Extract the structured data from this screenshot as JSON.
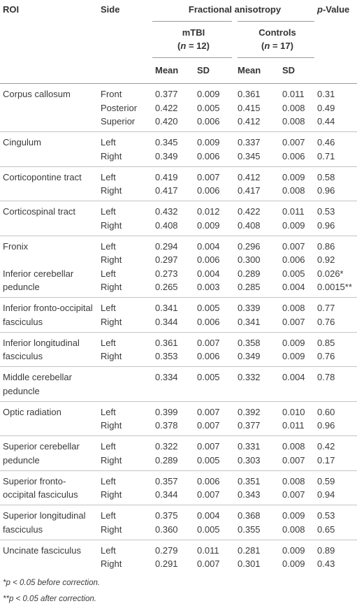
{
  "table": {
    "header": {
      "roi": "ROI",
      "side": "Side",
      "fa": "Fractional anisotropy",
      "p_italic": "p",
      "p_rest": "-Value",
      "mtbi": "mTBI",
      "mtbi_open": "(",
      "mtbi_n": "n",
      "mtbi_rest": " = 12)",
      "controls": "Controls",
      "controls_open": "(",
      "controls_n": "n",
      "controls_rest": " = 17)",
      "mean_1": "Mean",
      "sd_1": "SD",
      "mean_2": "Mean",
      "sd_2": "SD"
    },
    "blocks": [
      [
        {
          "roi": "Corpus callosum",
          "rows": [
            [
              "Front",
              "0.377",
              "0.009",
              "0.361",
              "0.011",
              "0.31"
            ],
            [
              "Posterior",
              "0.422",
              "0.005",
              "0.415",
              "0.008",
              "0.49"
            ],
            [
              "Superior",
              "0.420",
              "0.006",
              "0.412",
              "0.008",
              "0.44"
            ]
          ]
        }
      ],
      [
        {
          "roi": "Cingulum",
          "rows": [
            [
              "Left",
              "0.345",
              "0.009",
              "0.337",
              "0.007",
              "0.46"
            ],
            [
              "Right",
              "0.349",
              "0.006",
              "0.345",
              "0.006",
              "0.71"
            ]
          ]
        }
      ],
      [
        {
          "roi": "Corticopontine tract",
          "rows": [
            [
              "Left",
              "0.419",
              "0.007",
              "0.412",
              "0.009",
              "0.58"
            ],
            [
              "Right",
              "0.417",
              "0.006",
              "0.417",
              "0.008",
              "0.96"
            ]
          ]
        }
      ],
      [
        {
          "roi": "Corticospinal tract",
          "rows": [
            [
              "Left",
              "0.432",
              "0.012",
              "0.422",
              "0.011",
              "0.53"
            ],
            [
              "Right",
              "0.408",
              "0.009",
              "0.408",
              "0.009",
              "0.96"
            ]
          ]
        }
      ],
      [
        {
          "roi": "Fronix",
          "rows": [
            [
              "Left",
              "0.294",
              "0.004",
              "0.296",
              "0.007",
              "0.86"
            ],
            [
              "Right",
              "0.297",
              "0.006",
              "0.300",
              "0.006",
              "0.92"
            ]
          ]
        },
        {
          "roi": "Inferior cerebellar peduncle",
          "rows": [
            [
              "Left",
              "0.273",
              "0.004",
              "0.289",
              "0.005",
              "0.026*"
            ],
            [
              "Right",
              "0.265",
              "0.003",
              "0.285",
              "0.004",
              "0.0015**"
            ]
          ]
        }
      ],
      [
        {
          "roi": "Inferior fronto-occipital fasciculus",
          "rows": [
            [
              "Left",
              "0.341",
              "0.005",
              "0.339",
              "0.008",
              "0.77"
            ],
            [
              "Right",
              "0.344",
              "0.006",
              "0.341",
              "0.007",
              "0.76"
            ]
          ]
        }
      ],
      [
        {
          "roi": "Inferior longitudinal fasciculus",
          "rows": [
            [
              "Left",
              "0.361",
              "0.007",
              "0.358",
              "0.009",
              "0.85"
            ],
            [
              "Right",
              "0.353",
              "0.006",
              "0.349",
              "0.009",
              "0.76"
            ]
          ]
        }
      ],
      [
        {
          "roi": "Middle cerebellar peduncle",
          "rows": [
            [
              null,
              "0.334",
              "0.005",
              "0.332",
              "0.004",
              "0.78"
            ]
          ]
        }
      ],
      [
        {
          "roi": "Optic radiation",
          "rows": [
            [
              "Left",
              "0.399",
              "0.007",
              "0.392",
              "0.010",
              "0.60"
            ],
            [
              "Right",
              "0.378",
              "0.007",
              "0.377",
              "0.011",
              "0.96"
            ]
          ]
        }
      ],
      [
        {
          "roi": "Superior cerebellar peduncle",
          "rows": [
            [
              "Left",
              "0.322",
              "0.007",
              "0.331",
              "0.008",
              "0.42"
            ],
            [
              "Right",
              "0.289",
              "0.005",
              "0.303",
              "0.007",
              "0.17"
            ]
          ]
        }
      ],
      [
        {
          "roi": "Superior fronto-occipital fasciculus",
          "rows": [
            [
              "Left",
              "0.357",
              "0.006",
              "0.351",
              "0.008",
              "0.59"
            ],
            [
              "Right",
              "0.344",
              "0.007",
              "0.343",
              "0.007",
              "0.94"
            ]
          ]
        }
      ],
      [
        {
          "roi": "Superior longitudinal fasciculus",
          "rows": [
            [
              "Left",
              "0.375",
              "0.004",
              "0.368",
              "0.009",
              "0.53"
            ],
            [
              "Right",
              "0.360",
              "0.005",
              "0.355",
              "0.008",
              "0.65"
            ]
          ]
        }
      ],
      [
        {
          "roi": "Uncinate fasciculus",
          "rows": [
            [
              "Left",
              "0.279",
              "0.011",
              "0.281",
              "0.009",
              "0.89"
            ],
            [
              "Right",
              "0.291",
              "0.007",
              "0.301",
              "0.009",
              "0.43"
            ]
          ]
        }
      ]
    ]
  },
  "footnotes": [
    {
      "mark": "*",
      "p": "p",
      "text": " < 0.05 before correction."
    },
    {
      "mark": "**",
      "p": "p",
      "text": " < 0.05 after correction."
    }
  ]
}
